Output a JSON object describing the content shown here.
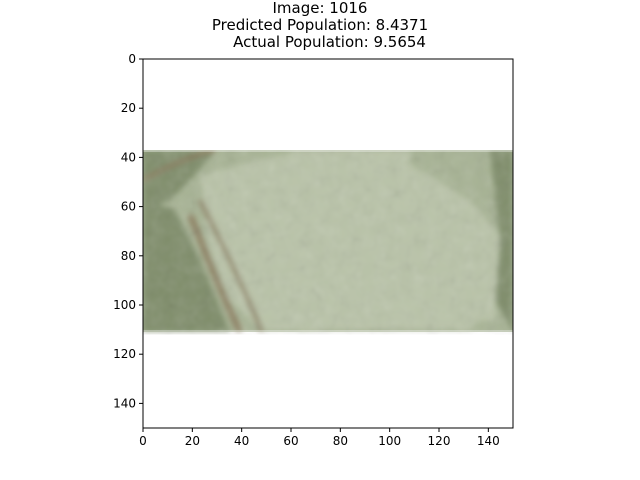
{
  "figure": {
    "title_lines": [
      "Image: 1016",
      "Predicted Population: 8.4371",
      "    Actual Population: 9.5654"
    ]
  },
  "axes": {
    "xlim": [
      0,
      150
    ],
    "ylim": [
      150,
      0
    ],
    "x_ticks": [
      0,
      20,
      40,
      60,
      80,
      100,
      120,
      140
    ],
    "y_ticks": [
      0,
      20,
      40,
      60,
      80,
      100,
      120,
      140
    ]
  },
  "image": {
    "description": "aerial satellite tile",
    "rows_visible": [
      37,
      112
    ],
    "cols_visible": [
      0,
      150
    ],
    "palette": {
      "base": "#a7b394",
      "light": "#b9c3a8",
      "dark": "#7f8d6b",
      "road": "#8b7d5e"
    }
  }
}
